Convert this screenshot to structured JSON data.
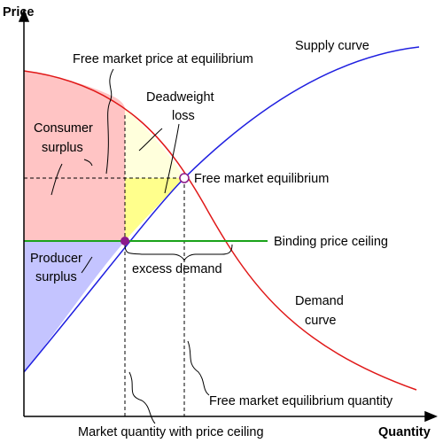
{
  "axes": {
    "y_title": "Price",
    "x_title": "Quantity"
  },
  "labels": {
    "free_market_price": "Free market price at equilibrium",
    "supply_curve": "Supply curve",
    "deadweight_loss": [
      "Deadweight",
      "loss"
    ],
    "consumer_surplus": [
      "Consumer",
      "surplus"
    ],
    "producer_surplus": [
      "Producer",
      "surplus"
    ],
    "free_market_equilibrium": "Free market equilibrium",
    "binding_price_ceiling": "Binding price ceiling",
    "excess_demand": "excess demand",
    "demand_curve": [
      "Demand",
      "curve"
    ],
    "free_market_eq_quantity": "Free market equilibrium quantity",
    "market_qty_with_ceiling": "Market quantity with price ceiling"
  },
  "colors": {
    "supply": "#1f1fe0",
    "demand": "#e01818",
    "price_ceiling": "#1aa31a",
    "consumer_surplus_fill": "#ffc4c4",
    "producer_surplus_fill": "#c4c4ff",
    "deadweight_loss_upper_fill": "#ffffdc",
    "deadweight_loss_lower_fill": "#ffff8c",
    "equilibrium_point": "#8b1a8b"
  }
}
